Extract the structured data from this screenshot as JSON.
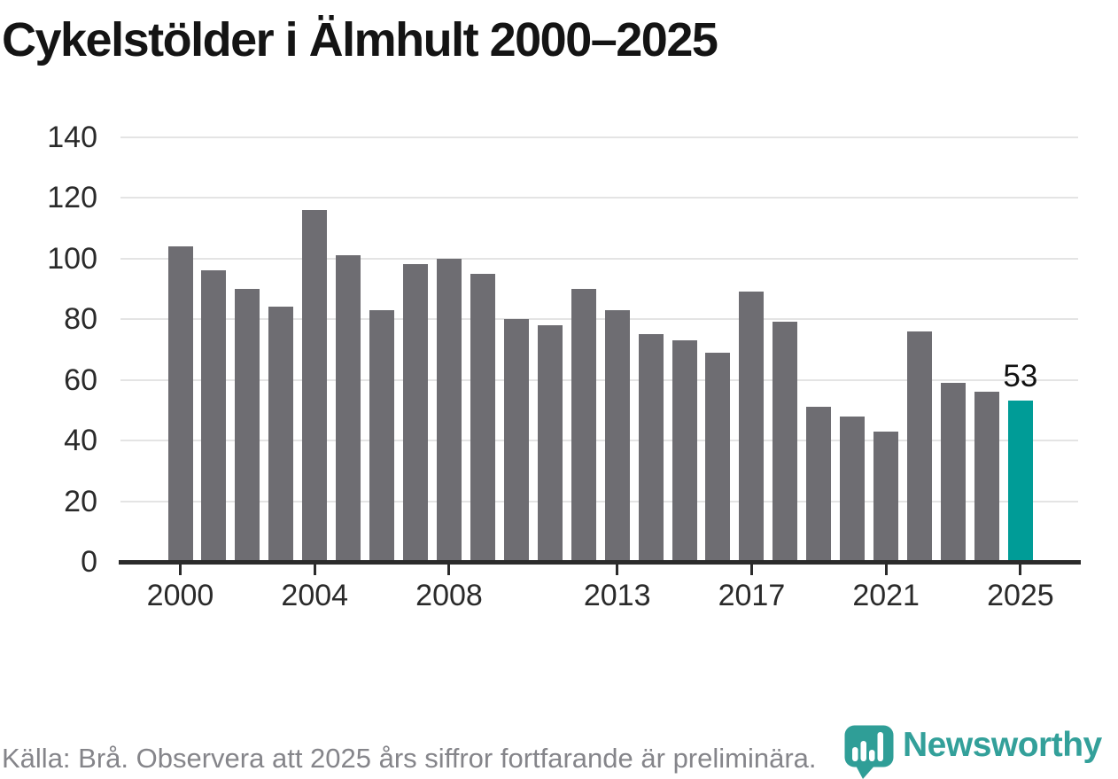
{
  "page": {
    "title": "Cykelstölder i Älmhult 2000–2025"
  },
  "footer": {
    "text": "Källa: Brå. Observera att 2025 års siffror fortfarande är preliminära."
  },
  "logo": {
    "brand": "Newsworthy",
    "icon": "newsworthy-bubble-barchart-icon"
  },
  "colors": {
    "bar": "#6e6d72",
    "highlight": "#009c97",
    "grid": "#e4e4e4",
    "axis": "#2b2b2b",
    "title_text": "#141414",
    "tick_label_text": "#2a2a2a",
    "footer_text": "#85858a",
    "logo_teal": "#33a09a",
    "annotation_text": "#111111",
    "background": "#ffffff"
  },
  "chart_data": {
    "type": "bar",
    "title": "Cykelstölder i Älmhult 2000–2025",
    "x": [
      2000,
      2001,
      2002,
      2003,
      2004,
      2005,
      2006,
      2007,
      2008,
      2009,
      2010,
      2011,
      2012,
      2013,
      2014,
      2015,
      2016,
      2017,
      2018,
      2019,
      2020,
      2021,
      2022,
      2023,
      2024,
      2025
    ],
    "values": [
      104,
      96,
      90,
      84,
      116,
      101,
      83,
      98,
      100,
      95,
      80,
      78,
      90,
      83,
      75,
      73,
      69,
      89,
      79,
      51,
      48,
      43,
      76,
      59,
      56,
      53
    ],
    "highlight_year": 2025,
    "annotation": {
      "year": 2025,
      "label": "53"
    },
    "x_tick_labels": [
      "2000",
      "2004",
      "2008",
      "2013",
      "2017",
      "2021",
      "2025"
    ],
    "y_tick_labels": [
      "0",
      "20",
      "40",
      "60",
      "80",
      "100",
      "120",
      "140"
    ],
    "ylim": [
      0,
      140
    ],
    "grid": "horizontal",
    "legend": "none",
    "xlabel": "",
    "ylabel": ""
  }
}
